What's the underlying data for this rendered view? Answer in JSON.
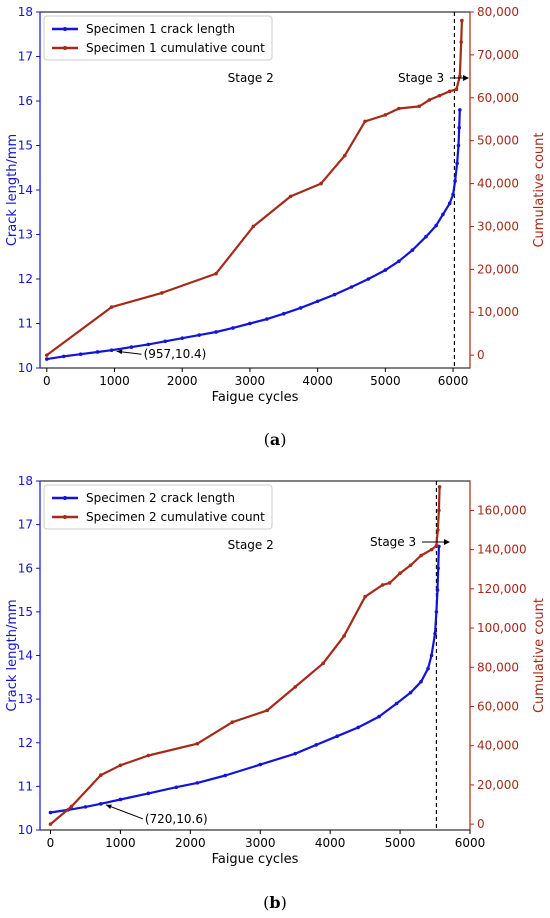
{
  "colors": {
    "crack": "#1414d6",
    "count": "#a52a18",
    "axis": "#000000"
  },
  "chart_data": [
    {
      "type": "line",
      "caption": "(a)",
      "xlabel": "Faigue cycles",
      "ylabel": "Crack length/mm",
      "y2label": "Cumulative count",
      "xlim": [
        -100,
        6250
      ],
      "xticks": [
        0,
        1000,
        2000,
        3000,
        4000,
        5000,
        6000
      ],
      "xticklabels": [
        "0",
        "1000",
        "2000",
        "3000",
        "4000",
        "5000",
        "6000"
      ],
      "ylim": [
        10,
        18
      ],
      "yticks": [
        10,
        11,
        12,
        13,
        14,
        15,
        16,
        17,
        18
      ],
      "yticklabels": [
        "10",
        "11",
        "12",
        "13",
        "14",
        "15",
        "16",
        "17",
        "18"
      ],
      "y2lim": [
        -3000,
        80000
      ],
      "y2ticks": [
        0,
        10000,
        20000,
        30000,
        40000,
        50000,
        60000,
        70000,
        80000
      ],
      "y2ticklabels": [
        "0",
        "10,000",
        "20,000",
        "30,000",
        "40,000",
        "50,000",
        "60,000",
        "70,000",
        "80,000"
      ],
      "legend": [
        "Specimen 1 crack length",
        "Specimen 1 cumulative count"
      ],
      "legend_position": "top-left",
      "vline_x": 6020,
      "stage2": "Stage 2",
      "stage3": "Stage 3",
      "point_label": "(957,10.4)",
      "point_xy": [
        957,
        10.4
      ],
      "series": [
        {
          "name": "Specimen 1 crack length",
          "axis": "left",
          "x": [
            0,
            250,
            500,
            750,
            957,
            1250,
            1500,
            1750,
            2000,
            2250,
            2500,
            2750,
            3000,
            3250,
            3500,
            3750,
            4000,
            4250,
            4500,
            4750,
            5000,
            5200,
            5400,
            5600,
            5750,
            5850,
            5950,
            6000,
            6030,
            6060,
            6080,
            6090,
            6100
          ],
          "y": [
            10.2,
            10.26,
            10.31,
            10.36,
            10.4,
            10.47,
            10.53,
            10.6,
            10.67,
            10.74,
            10.81,
            10.9,
            11.0,
            11.1,
            11.22,
            11.35,
            11.5,
            11.65,
            11.82,
            12.0,
            12.2,
            12.4,
            12.65,
            12.95,
            13.2,
            13.45,
            13.7,
            13.9,
            14.2,
            14.6,
            15.0,
            15.4,
            15.8
          ]
        },
        {
          "name": "Specimen 1 cumulative count",
          "axis": "right",
          "x": [
            0,
            957,
            1700,
            2500,
            3050,
            3600,
            4050,
            4400,
            4700,
            5000,
            5200,
            5500,
            5650,
            5800,
            5950,
            6050,
            6100,
            6120,
            6130
          ],
          "y": [
            0,
            11200,
            14500,
            19000,
            30000,
            37000,
            40000,
            46500,
            54500,
            56000,
            57500,
            58000,
            59500,
            60500,
            61500,
            62000,
            65000,
            73000,
            78000
          ]
        }
      ]
    },
    {
      "type": "line",
      "caption": "(b)",
      "xlabel": "Faigue cycles",
      "ylabel": "Crack length/mm",
      "y2label": "Cumulative count",
      "xlim": [
        -150,
        6000
      ],
      "xticks": [
        0,
        1000,
        2000,
        3000,
        4000,
        5000,
        6000
      ],
      "xticklabels": [
        "0",
        "1000",
        "2000",
        "3000",
        "4000",
        "5000",
        "6000"
      ],
      "ylim": [
        10,
        18
      ],
      "yticks": [
        10,
        11,
        12,
        13,
        14,
        15,
        16,
        17,
        18
      ],
      "yticklabels": [
        "10",
        "11",
        "12",
        "13",
        "14",
        "15",
        "16",
        "17",
        "18"
      ],
      "y2lim": [
        -3000,
        175000
      ],
      "y2ticks": [
        0,
        20000,
        40000,
        60000,
        80000,
        100000,
        120000,
        140000,
        160000
      ],
      "y2ticklabels": [
        "0",
        "20,000",
        "40,000",
        "60,000",
        "80,000",
        "100,000",
        "120,000",
        "140,000",
        "160,000"
      ],
      "legend": [
        "Specimen 2 crack length",
        "Specimen 2 cumulative count"
      ],
      "legend_position": "top-left",
      "vline_x": 5520,
      "stage2": "Stage 2",
      "stage3": "Stage 3",
      "point_label": "(720,10.6)",
      "point_xy": [
        720,
        10.6
      ],
      "series": [
        {
          "name": "Specimen 2 crack length",
          "axis": "left",
          "x": [
            0,
            250,
            500,
            720,
            1000,
            1400,
            1800,
            2100,
            2500,
            3000,
            3500,
            3800,
            4100,
            4400,
            4700,
            4950,
            5150,
            5300,
            5400,
            5450,
            5500,
            5520,
            5535,
            5545,
            5555
          ],
          "y": [
            10.4,
            10.46,
            10.53,
            10.6,
            10.7,
            10.84,
            10.98,
            11.08,
            11.25,
            11.5,
            11.75,
            11.95,
            12.15,
            12.35,
            12.6,
            12.9,
            13.15,
            13.4,
            13.7,
            14.0,
            14.5,
            15.0,
            15.5,
            16.0,
            16.5
          ]
        },
        {
          "name": "Specimen 2 cumulative count",
          "axis": "right",
          "x": [
            0,
            300,
            720,
            1000,
            1400,
            2100,
            2600,
            3100,
            3500,
            3900,
            4200,
            4500,
            4750,
            4850,
            5000,
            5150,
            5300,
            5450,
            5520,
            5540,
            5555,
            5565
          ],
          "y": [
            0,
            9000,
            25000,
            30000,
            35000,
            41000,
            52000,
            58000,
            70000,
            82000,
            96000,
            116000,
            122000,
            123000,
            128000,
            132000,
            137000,
            140000,
            142000,
            150000,
            160000,
            172000
          ]
        }
      ]
    }
  ]
}
